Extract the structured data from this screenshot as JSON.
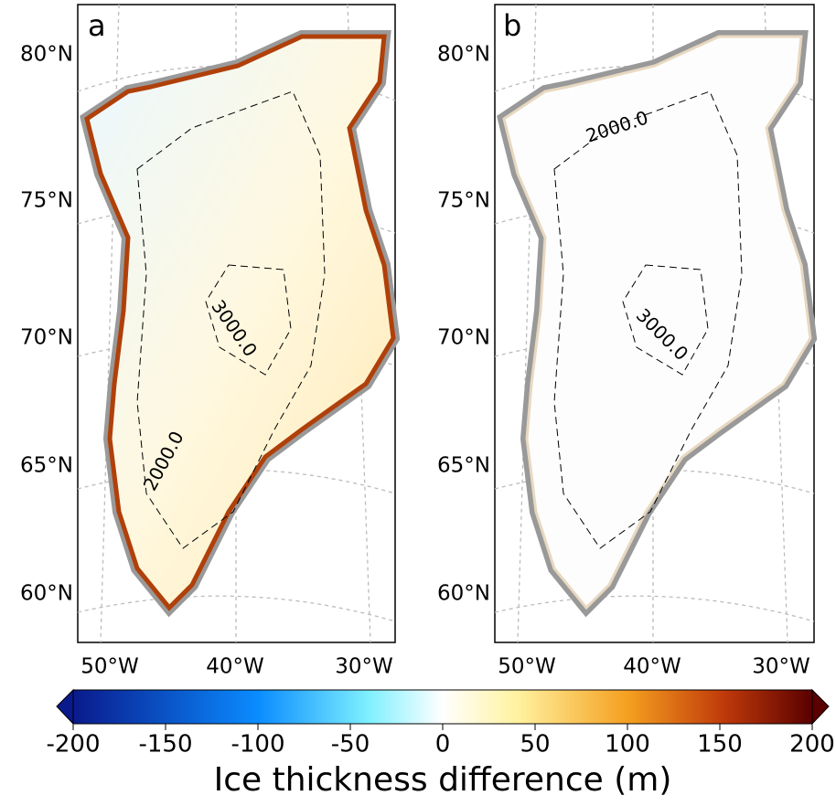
{
  "panels": [
    {
      "label": "a",
      "contour_labels": [
        "2000.0",
        "3000.0"
      ]
    },
    {
      "label": "b",
      "contour_labels": [
        "2000.0",
        "3000.0"
      ]
    }
  ],
  "lat_labels": [
    "80°N",
    "75°N",
    "70°N",
    "65°N",
    "60°N"
  ],
  "lon_labels": [
    "50°W",
    "40°W",
    "30°W"
  ],
  "colorbar": {
    "label": "Ice thickness difference (m)",
    "lim": [
      -200,
      200
    ],
    "ticks": [
      -200,
      -150,
      -100,
      -50,
      0,
      50,
      100,
      150,
      200
    ]
  }
}
